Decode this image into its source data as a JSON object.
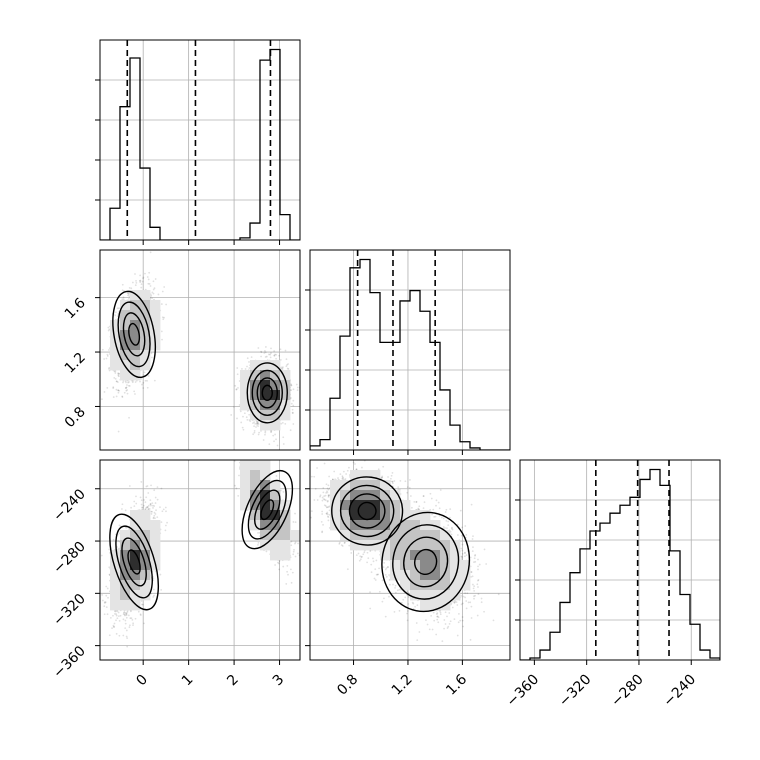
{
  "chart_data": {
    "type": "corner",
    "grid": true,
    "parameters": [
      {
        "name": "",
        "range": [
          -0.95,
          3.45
        ],
        "ticks": [
          0,
          1,
          2,
          3
        ],
        "tick_labels": [
          "0",
          "1",
          "2",
          "3"
        ]
      },
      {
        "name": "",
        "range": [
          0.48,
          1.95
        ],
        "ticks": [
          0.8,
          1.2,
          1.6
        ],
        "tick_labels": [
          "0.8",
          "1.2",
          "1.6"
        ]
      },
      {
        "name": "",
        "range": [
          -371,
          -218
        ],
        "ticks": [
          -360,
          -320,
          -280,
          -240
        ],
        "tick_labels": [
          "−360",
          "−320",
          "−280",
          "−240"
        ]
      }
    ],
    "quantiles": [
      [
        -0.35,
        1.15,
        2.8
      ],
      [
        0.83,
        1.09,
        1.4
      ],
      [
        -313,
        -281,
        -257
      ]
    ],
    "histograms": [
      {
        "bin_edges": [
          -0.95,
          -0.73,
          -0.51,
          -0.29,
          -0.07,
          0.15,
          0.37,
          0.59,
          0.81,
          1.03,
          1.25,
          1.47,
          1.69,
          1.91,
          2.13,
          2.35,
          2.57,
          2.79,
          3.01,
          3.23,
          3.45
        ],
        "counts": [
          0,
          0.15,
          0.63,
          0.86,
          0.34,
          0.06,
          0,
          0,
          0,
          0,
          0,
          0,
          0,
          0,
          0.01,
          0.08,
          0.85,
          0.9,
          0.12,
          0
        ]
      },
      {
        "bin_edges": [
          0.48,
          0.5535,
          0.627,
          0.7005,
          0.774,
          0.8475,
          0.921,
          0.9945,
          1.068,
          1.1415,
          1.215,
          1.2885,
          1.362,
          1.4355,
          1.509,
          1.5825,
          1.656,
          1.7295,
          1.803,
          1.8765,
          1.95
        ],
        "counts": [
          0.02,
          0.05,
          0.25,
          0.55,
          0.88,
          0.92,
          0.76,
          0.52,
          0.52,
          0.72,
          0.77,
          0.67,
          0.52,
          0.29,
          0.12,
          0.04,
          0.01,
          0,
          0,
          0
        ]
      },
      {
        "bin_edges": [
          -371,
          -363.35,
          -355.7,
          -348.05,
          -340.4,
          -332.75,
          -325.1,
          -317.45,
          -309.8,
          -302.15,
          -294.5,
          -286.85,
          -279.2,
          -271.55,
          -263.9,
          -256.25,
          -248.6,
          -240.95,
          -233.3,
          -225.65,
          -218
        ],
        "counts": [
          0,
          0.01,
          0.05,
          0.14,
          0.29,
          0.44,
          0.56,
          0.65,
          0.69,
          0.74,
          0.78,
          0.82,
          0.91,
          0.96,
          0.88,
          0.55,
          0.33,
          0.18,
          0.05,
          0.01
        ]
      }
    ],
    "density_2d": [
      {
        "x_param": 0,
        "y_param": 1,
        "clusters": [
          {
            "center": [
              -0.2,
              1.33
            ],
            "spread": [
              0.22,
              0.16
            ],
            "corr": 0.3,
            "weight": 0.5
          },
          {
            "center": [
              2.73,
              0.9
            ],
            "spread": [
              0.22,
              0.11
            ],
            "corr": 0.0,
            "weight": 0.5
          }
        ]
      },
      {
        "x_param": 0,
        "y_param": 2,
        "clusters": [
          {
            "center": [
              -0.2,
              -296
            ],
            "spread": [
              0.22,
              19
            ],
            "corr": 0.5,
            "weight": 0.5
          },
          {
            "center": [
              2.73,
              -256
            ],
            "spread": [
              0.22,
              16
            ],
            "corr": -0.7,
            "weight": 0.5
          }
        ]
      },
      {
        "x_param": 1,
        "y_param": 2,
        "clusters": [
          {
            "center": [
              0.9,
              -257
            ],
            "spread": [
              0.13,
              13
            ],
            "corr": -0.2,
            "weight": 0.5
          },
          {
            "center": [
              1.33,
              -296
            ],
            "spread": [
              0.16,
              19
            ],
            "corr": -0.3,
            "weight": 0.5
          }
        ]
      }
    ]
  }
}
